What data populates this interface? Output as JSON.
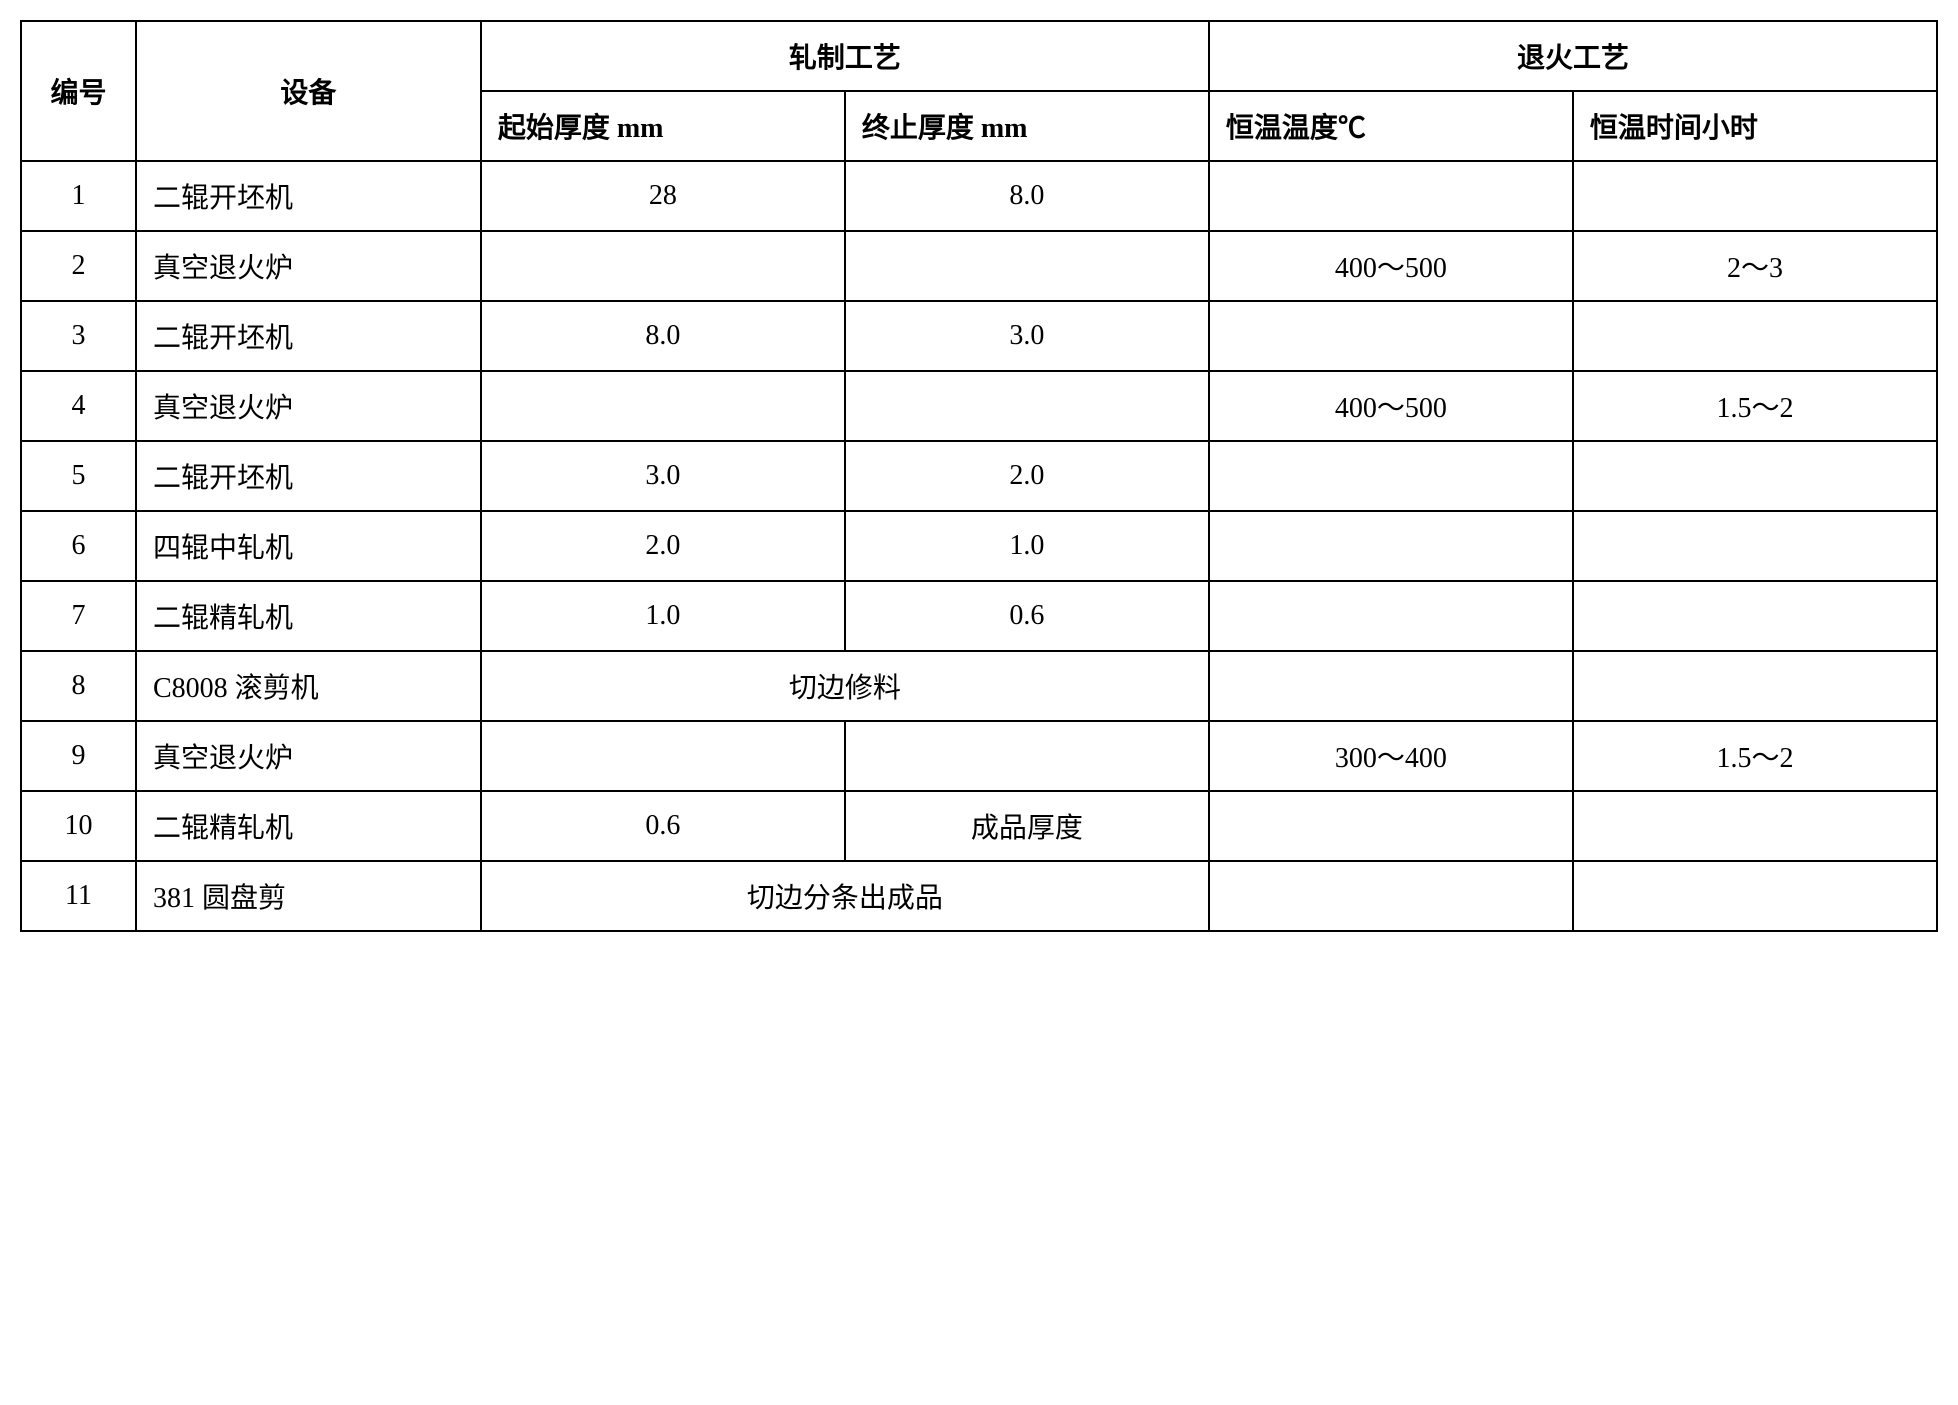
{
  "header": {
    "num": "编号",
    "equipment": "设备",
    "rolling_process": "轧制工艺",
    "annealing_process": "退火工艺",
    "start_thickness": "起始厚度 mm",
    "end_thickness": "终止厚度 mm",
    "const_temp": "恒温温度℃",
    "const_time": "恒温时间小时"
  },
  "rows": [
    {
      "num": "1",
      "equipment": "二辊开坯机",
      "start": "28",
      "end": "8.0",
      "temp": "",
      "time": ""
    },
    {
      "num": "2",
      "equipment": "真空退火炉",
      "start": "",
      "end": "",
      "temp": "400～500",
      "time": "2～3"
    },
    {
      "num": "3",
      "equipment": "二辊开坯机",
      "start": "8.0",
      "end": "3.0",
      "temp": "",
      "time": ""
    },
    {
      "num": "4",
      "equipment": "真空退火炉",
      "start": "",
      "end": "",
      "temp": "400～500",
      "time": "1.5～2"
    },
    {
      "num": "5",
      "equipment": "二辊开坯机",
      "start": "3.0",
      "end": "2.0",
      "temp": "",
      "time": ""
    },
    {
      "num": "6",
      "equipment": "四辊中轧机",
      "start": "2.0",
      "end": "1.0",
      "temp": "",
      "time": ""
    },
    {
      "num": "7",
      "equipment": "二辊精轧机",
      "start": "1.0",
      "end": "0.6",
      "temp": "",
      "time": ""
    },
    {
      "num": "8",
      "equipment": "C8008 滚剪机",
      "merged": "切边修料",
      "temp": "",
      "time": ""
    },
    {
      "num": "9",
      "equipment": "真空退火炉",
      "start": "",
      "end": "",
      "temp": "300～400",
      "time": "1.5～2"
    },
    {
      "num": "10",
      "equipment": "二辊精轧机",
      "start": "0.6",
      "end": "成品厚度",
      "temp": "",
      "time": ""
    },
    {
      "num": "11",
      "equipment": "381 圆盘剪",
      "merged": "切边分条出成品",
      "temp": "",
      "time": ""
    }
  ],
  "styling": {
    "type": "table",
    "border_color": "#000000",
    "border_width": 2,
    "background_color": "#ffffff",
    "text_color": "#000000",
    "font_family": "SimSun",
    "cell_fontsize": 28,
    "cell_padding": 14,
    "column_widths_pct": [
      6,
      18,
      19,
      19,
      19,
      19
    ],
    "num_column_align": "center",
    "equipment_column_align": "left",
    "other_columns_align": "center"
  }
}
